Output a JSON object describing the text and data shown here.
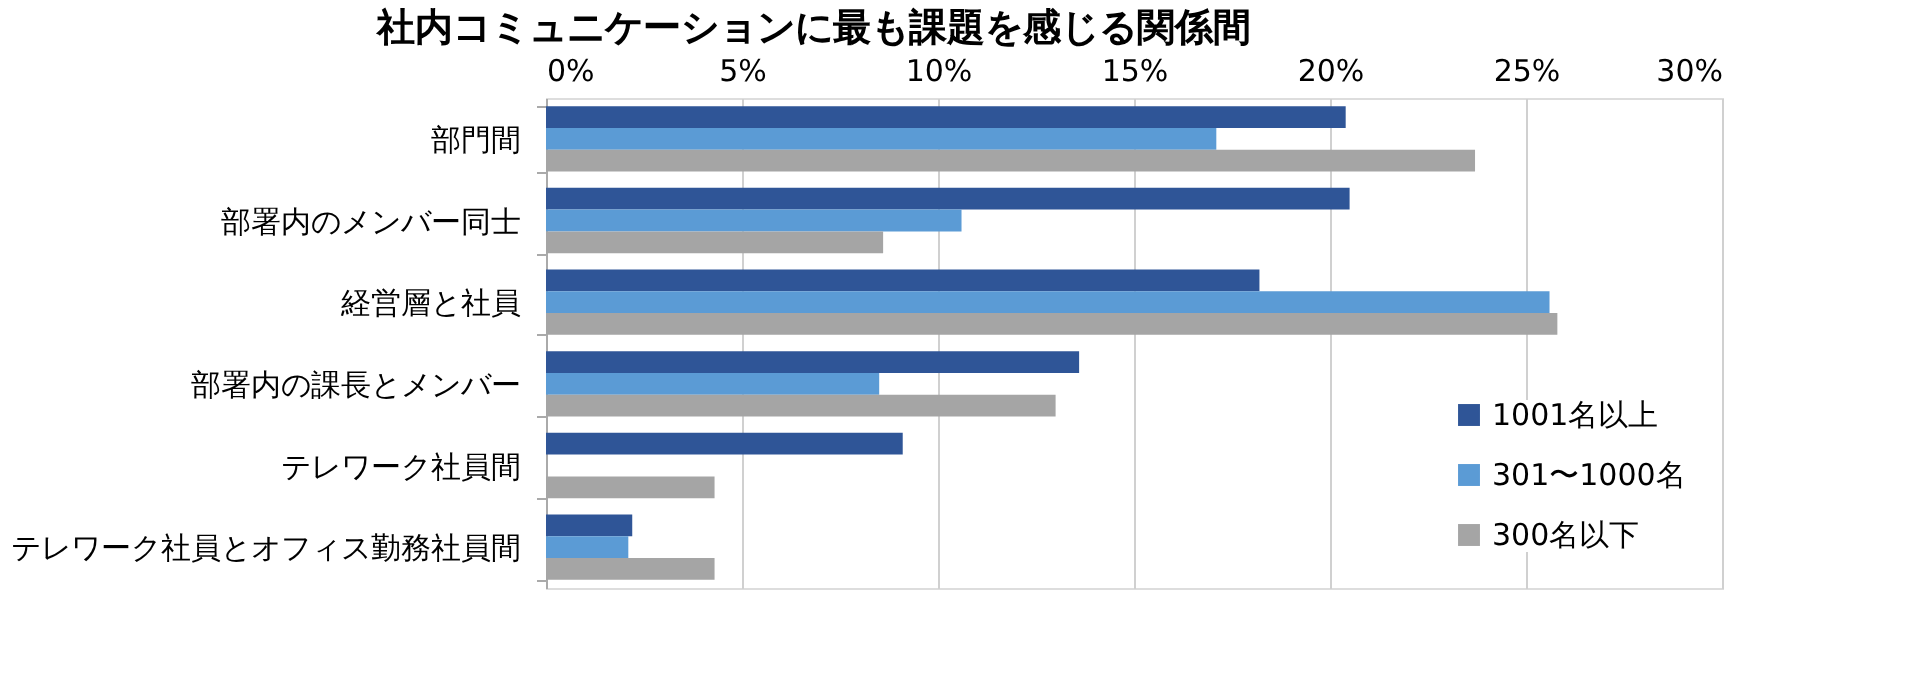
{
  "chart_data": {
    "type": "bar",
    "orientation": "horizontal",
    "title": "社内コミュニケーションに最も課題を感じる関係間",
    "categories": [
      "部門間",
      "部署内のメンバー同士",
      "経営層と社員",
      "部署内の課長とメンバー",
      "テレワーク社員間",
      "テレワーク社員とオフィス勤務社員間"
    ],
    "series": [
      {
        "name": "1001名以上",
        "color": "#2f5597",
        "values": [
          20.4,
          20.5,
          18.2,
          13.6,
          9.1,
          2.2
        ]
      },
      {
        "name": "301〜1000名",
        "color": "#5b9bd5",
        "values": [
          17.1,
          10.6,
          25.6,
          8.5,
          null,
          2.1
        ]
      },
      {
        "name": "300名以下",
        "color": "#a5a5a5",
        "values": [
          23.7,
          8.6,
          25.8,
          13.0,
          4.3,
          4.3
        ]
      }
    ],
    "xlim": [
      0,
      30
    ],
    "xticks": [
      {
        "value": 0,
        "label": "0%"
      },
      {
        "value": 5,
        "label": "5%"
      },
      {
        "value": 10,
        "label": "10%"
      },
      {
        "value": 15,
        "label": "15%"
      },
      {
        "value": 20,
        "label": "20%"
      },
      {
        "value": 25,
        "label": "25%"
      },
      {
        "value": 30,
        "label": "30%"
      }
    ],
    "grid": "x",
    "legend": "bottom right"
  }
}
